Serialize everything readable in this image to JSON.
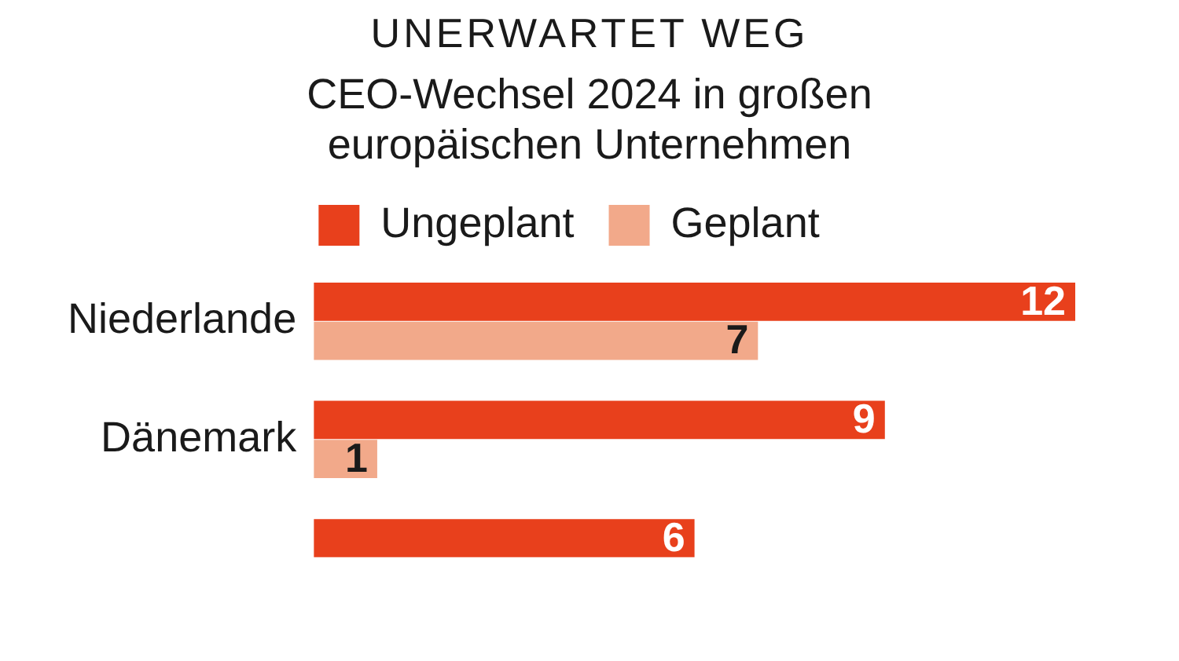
{
  "chart_data": {
    "type": "bar",
    "orientation": "horizontal",
    "title": "UNERWARTET WEG",
    "subtitle": "CEO-Wechsel 2024 in großen europäischen Unternehmen",
    "categories": [
      "Niederlande",
      "Dänemark",
      null
    ],
    "series": [
      {
        "name": "Ungeplant",
        "color": "#e8401c",
        "values": [
          12,
          9,
          6
        ]
      },
      {
        "name": "Geplant",
        "color": "#f2a98a",
        "values": [
          7,
          1,
          null
        ]
      }
    ],
    "data_labels": true,
    "legend": "top",
    "tick_labels": "y"
  }
}
